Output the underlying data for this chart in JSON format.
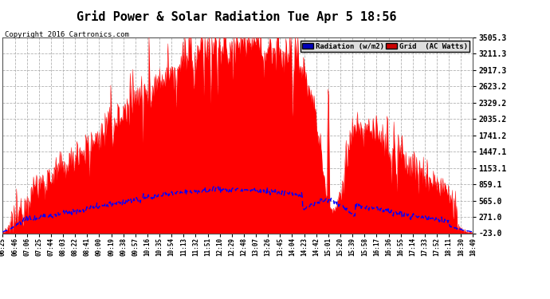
{
  "title": "Grid Power & Solar Radiation Tue Apr 5 18:56",
  "copyright": "Copyright 2016 Cartronics.com",
  "bg_color": "#ffffff",
  "plot_bg_color": "#ffffff",
  "y_min": -23.0,
  "y_max": 3505.3,
  "y_ticks": [
    -23.0,
    271.0,
    565.0,
    859.1,
    1153.1,
    1447.1,
    1741.2,
    2035.2,
    2329.2,
    2623.2,
    2917.3,
    3211.3,
    3505.3
  ],
  "legend_radiation_label": "Radiation (w/m2)",
  "legend_grid_label": "Grid  (AC Watts)",
  "radiation_color": "#0000ff",
  "grid_fill_color": "#ff0000",
  "x_tick_labels": [
    "06:25",
    "06:46",
    "07:06",
    "07:25",
    "07:44",
    "08:03",
    "08:22",
    "08:41",
    "09:00",
    "09:19",
    "09:38",
    "09:57",
    "10:16",
    "10:35",
    "10:54",
    "11:13",
    "11:32",
    "11:51",
    "12:10",
    "12:29",
    "12:48",
    "13:07",
    "13:26",
    "13:45",
    "14:04",
    "14:23",
    "14:42",
    "15:01",
    "15:20",
    "15:39",
    "15:58",
    "16:17",
    "16:36",
    "16:55",
    "17:14",
    "17:33",
    "17:52",
    "18:11",
    "18:30",
    "18:49"
  ],
  "n_points": 750
}
